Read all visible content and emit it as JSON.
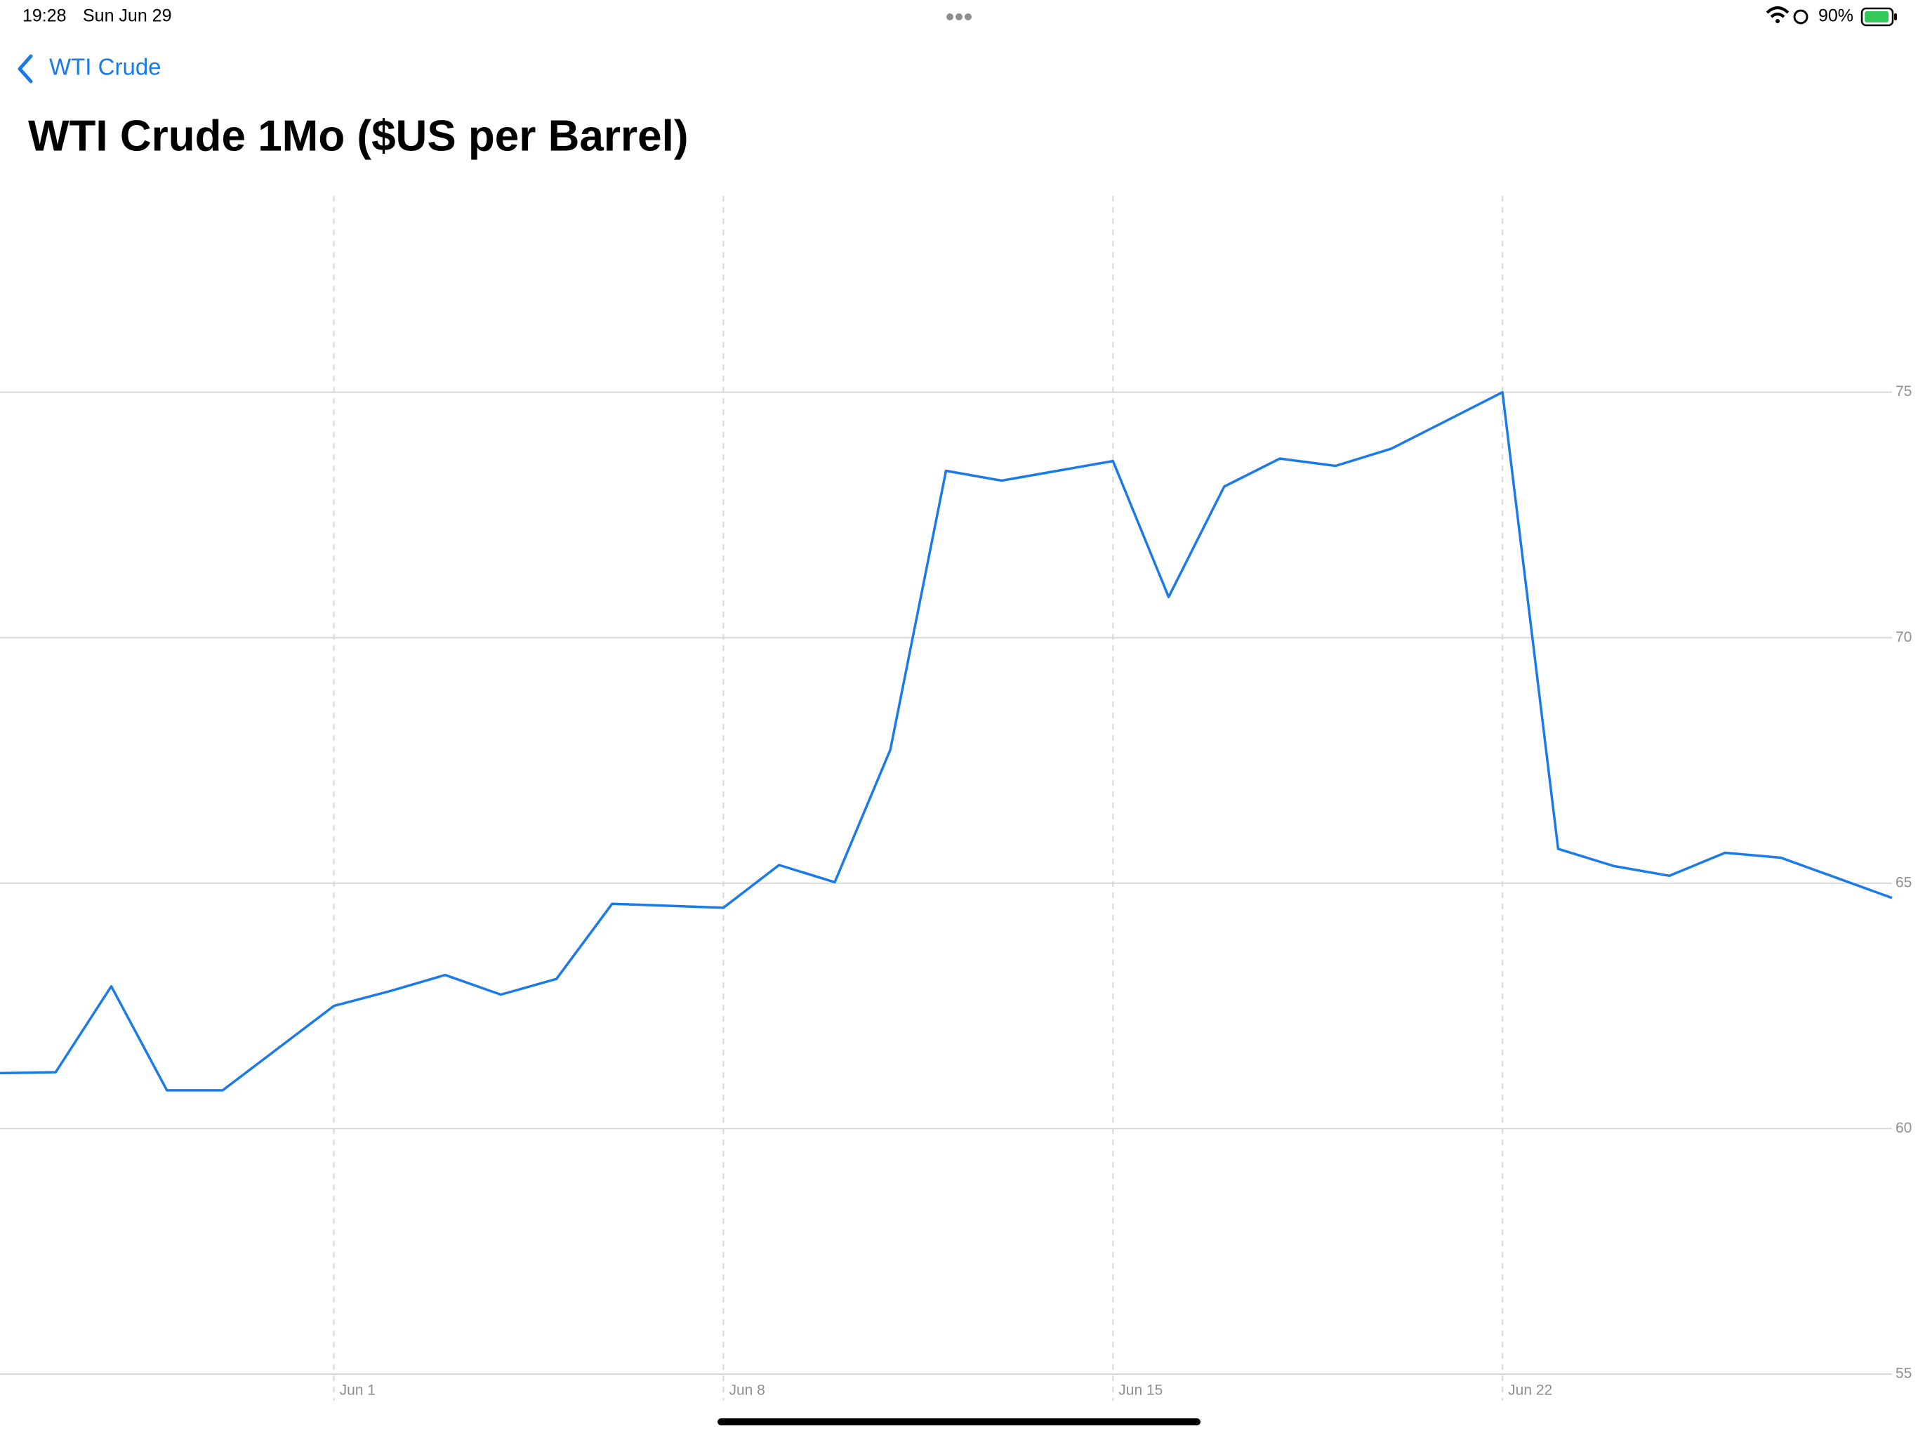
{
  "status_bar": {
    "time": "19:28",
    "date": "Sun Jun 29",
    "battery": "90%"
  },
  "nav": {
    "back": "WTI Crude"
  },
  "chart_data": {
    "type": "line",
    "title": "WTI Crude 1Mo ($US per Barrel)",
    "x": [
      "May 26",
      "May 27",
      "May 28",
      "May 29",
      "May 30",
      "Jun 1",
      "Jun 2",
      "Jun 3",
      "Jun 4",
      "Jun 5",
      "Jun 6",
      "Jun 8",
      "Jun 9",
      "Jun 10",
      "Jun 11",
      "Jun 12",
      "Jun 13",
      "Jun 15",
      "Jun 16",
      "Jun 17",
      "Jun 18",
      "Jun 19",
      "Jun 20",
      "Jun 22",
      "Jun 23",
      "Jun 24",
      "Jun 25",
      "Jun 26",
      "Jun 27",
      "Jun 29"
    ],
    "series": [
      {
        "name": "WTI Crude 1Mo",
        "color": "#1a7ae8",
        "values": [
          61.13,
          61.15,
          62.9,
          60.78,
          60.78,
          62.5,
          62.8,
          63.13,
          62.73,
          63.05,
          64.58,
          64.5,
          65.37,
          65.02,
          67.72,
          73.4,
          73.2,
          73.6,
          70.83,
          73.08,
          73.65,
          73.5,
          73.85,
          75.0,
          65.7,
          65.35,
          65.15,
          65.62,
          65.52,
          64.7
        ]
      }
    ],
    "xlim": [
      "May 26",
      "Jun 29"
    ],
    "xticks": [
      "Jun 1",
      "Jun 8",
      "Jun 15",
      "Jun 22"
    ],
    "ylim": [
      55,
      79
    ],
    "yticks": [
      55,
      60,
      65,
      70,
      75
    ],
    "grid": true
  }
}
